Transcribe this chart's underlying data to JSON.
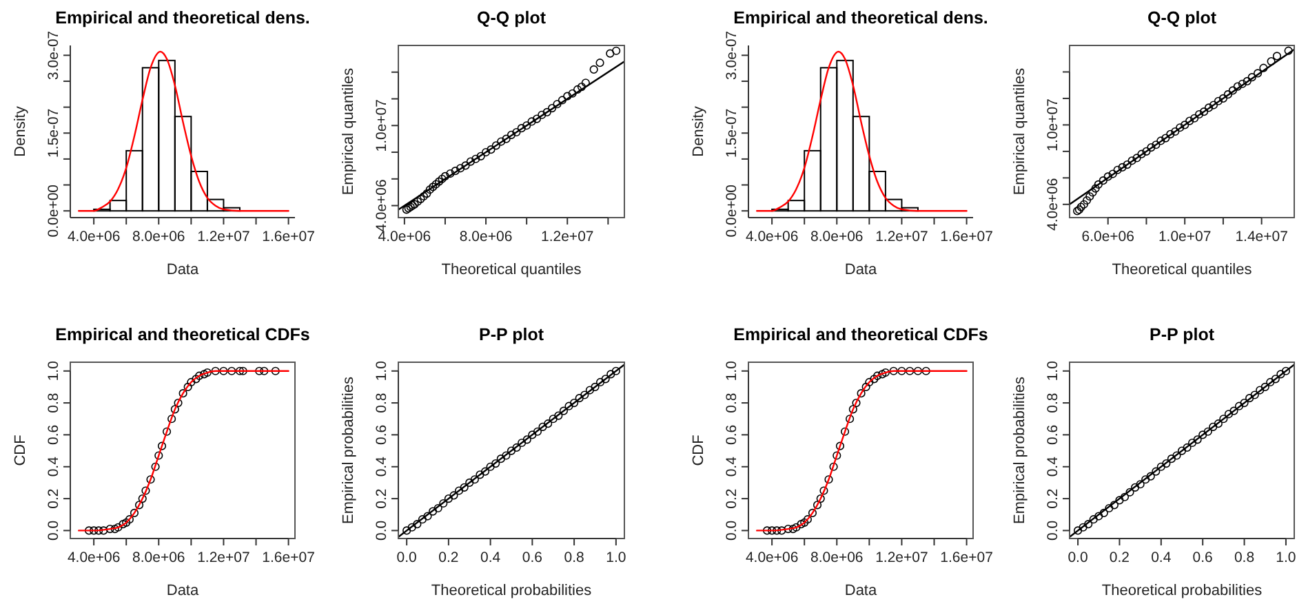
{
  "chart_data": [
    {
      "type": "histogram",
      "title": "Empirical and theoretical dens.",
      "xlabel": "Data",
      "ylabel": "Density",
      "bins": [
        4000000.0,
        5000000.0,
        6000000.0,
        7000000.0,
        8000000.0,
        9000000.0,
        10000000.0,
        11000000.0,
        12000000.0,
        13000000.0
      ],
      "values": [
        3e-09,
        2e-08,
        1.16e-07,
        2.76e-07,
        2.9e-07,
        1.82e-07,
        7.6e-08,
        2.2e-08,
        6e-09
      ],
      "xlim": [
        2550000.0,
        16400000.0
      ],
      "ylim": [
        -1.3e-08,
        3.19e-07
      ],
      "xticks": [
        {
          "value": 4000000.0,
          "label": "4.0e+06"
        },
        {
          "value": 6000000.0,
          "label": null
        },
        {
          "value": 8000000.0,
          "label": "8.0e+06"
        },
        {
          "value": 10000000.0,
          "label": null
        },
        {
          "value": 12000000.0,
          "label": "1.2e+07"
        },
        {
          "value": 14000000.0,
          "label": null
        },
        {
          "value": 16000000.0,
          "label": "1.6e+07"
        }
      ],
      "yticks": [
        {
          "value": 0,
          "label": "0.0e+00"
        },
        {
          "value": 5e-08,
          "label": null
        },
        {
          "value": 1e-07,
          "label": null
        },
        {
          "value": 1.5e-07,
          "label": "1.5e-07"
        },
        {
          "value": 2e-07,
          "label": null
        },
        {
          "value": 2.5e-07,
          "label": null
        },
        {
          "value": 3e-07,
          "label": "3.0e-07"
        }
      ],
      "series": [
        {
          "type": "line",
          "color": "#ff0000",
          "x": [
            3070000.0,
            4000000.0,
            4500000.0,
            5000000.0,
            5500000.0,
            6000000.0,
            6500000.0,
            7000000.0,
            7500000.0,
            8100000.0,
            8500000.0,
            9000000.0,
            9500000.0,
            10000000.0,
            10500000.0,
            11000000.0,
            11500000.0,
            12000000.0,
            13000000.0,
            16000000.0
          ],
          "values": [
            0,
            0,
            7e-09,
            1.8e-08,
            4.2e-08,
            8.3e-08,
            1.44e-07,
            2.14e-07,
            2.76e-07,
            3.07e-07,
            2.93e-07,
            2.42e-07,
            1.71e-07,
            1.06e-07,
            5.6e-08,
            2.5e-08,
            1e-08,
            3e-09,
            0,
            0
          ]
        }
      ]
    },
    {
      "type": "scatter",
      "title": "Q-Q plot",
      "xlabel": "Theoretical quantiles",
      "ylabel": "Empirical quantiles",
      "xlim": [
        3700000.0,
        14800000.0
      ],
      "ylim": [
        3100000.0,
        16000000.0
      ],
      "xticks": [
        {
          "value": 4000000.0,
          "label": "4.0e+06"
        },
        {
          "value": 6000000.0,
          "label": null
        },
        {
          "value": 8000000.0,
          "label": "8.0e+06"
        },
        {
          "value": 10000000.0,
          "label": null
        },
        {
          "value": 12000000.0,
          "label": "1.2e+07"
        },
        {
          "value": 14000000.0,
          "label": null
        }
      ],
      "yticks": [
        {
          "value": 4000000.0,
          "label": "4.0e+06"
        },
        {
          "value": 6000000.0,
          "label": null
        },
        {
          "value": 8000000.0,
          "label": null
        },
        {
          "value": 10000000.0,
          "label": "1.0e+07"
        },
        {
          "value": 12000000.0,
          "label": null
        },
        {
          "value": 14000000.0,
          "label": null
        }
      ],
      "series": [
        {
          "type": "scatter",
          "marker": "circle",
          "color": "#000000",
          "x": [
            4100000.0,
            4200000.0,
            4300000.0,
            4400000.0,
            4500000.0,
            4650000.0,
            4800000.0,
            4950000.0,
            5100000.0,
            5250000.0,
            5400000.0,
            5550000.0,
            5700000.0,
            5850000.0,
            6000000.0,
            6250000.0,
            6500000.0,
            6750000.0,
            7000000.0,
            7250000.0,
            7500000.0,
            7750000.0,
            8000000.0,
            8250000.0,
            8500000.0,
            8750000.0,
            9000000.0,
            9250000.0,
            9500000.0,
            9750000.0,
            10000000.0,
            10250000.0,
            10500000.0,
            10750000.0,
            11000000.0,
            11250000.0,
            11500000.0,
            11750000.0,
            12000000.0,
            12250000.0,
            12500000.0,
            12700000.0,
            12900000.0,
            13300000.0,
            13600000.0,
            14100000.0,
            14400000.0
          ],
          "values": [
            3700000.0,
            3800000.0,
            3900000.0,
            4000000.0,
            4100000.0,
            4300000.0,
            4500000.0,
            4700000.0,
            4900000.0,
            5200000.0,
            5400000.0,
            5600000.0,
            5800000.0,
            6000000.0,
            6200000.0,
            6400000.0,
            6600000.0,
            6800000.0,
            7000000.0,
            7300000.0,
            7500000.0,
            7700000.0,
            8000000.0,
            8200000.0,
            8500000.0,
            8800000.0,
            9000000.0,
            9300000.0,
            9500000.0,
            9800000.0,
            10000000.0,
            10300000.0,
            10500000.0,
            10800000.0,
            11000000.0,
            11300000.0,
            11600000.0,
            11900000.0,
            12200000.0,
            12400000.0,
            12700000.0,
            12900000.0,
            13200000.0,
            14200000.0,
            14700000.0,
            15400000.0,
            15600000.0
          ]
        },
        {
          "type": "line",
          "marker": "none",
          "color": "#000000",
          "x": [
            3700000.0,
            14800000.0
          ],
          "values": [
            3700000.0,
            14800000.0
          ]
        }
      ]
    },
    {
      "type": "histogram",
      "title": "Empirical and theoretical dens.",
      "xlabel": "Data",
      "ylabel": "Density",
      "bins": [
        4000000.0,
        5000000.0,
        6000000.0,
        7000000.0,
        8000000.0,
        9000000.0,
        10000000.0,
        11000000.0,
        12000000.0,
        13000000.0
      ],
      "values": [
        3e-09,
        2e-08,
        1.16e-07,
        2.76e-07,
        2.9e-07,
        1.82e-07,
        7.6e-08,
        2.2e-08,
        6e-09
      ],
      "xlim": [
        2550000.0,
        16400000.0
      ],
      "ylim": [
        -1.3e-08,
        3.19e-07
      ],
      "xticks": [
        {
          "value": 4000000.0,
          "label": "4.0e+06"
        },
        {
          "value": 6000000.0,
          "label": null
        },
        {
          "value": 8000000.0,
          "label": "8.0e+06"
        },
        {
          "value": 10000000.0,
          "label": null
        },
        {
          "value": 12000000.0,
          "label": "1.2e+07"
        },
        {
          "value": 14000000.0,
          "label": null
        },
        {
          "value": 16000000.0,
          "label": "1.6e+07"
        }
      ],
      "yticks": [
        {
          "value": 0,
          "label": "0.0e+00"
        },
        {
          "value": 5e-08,
          "label": null
        },
        {
          "value": 1e-07,
          "label": null
        },
        {
          "value": 1.5e-07,
          "label": "1.5e-07"
        },
        {
          "value": 2e-07,
          "label": null
        },
        {
          "value": 2.5e-07,
          "label": null
        },
        {
          "value": 3e-07,
          "label": "3.0e-07"
        }
      ],
      "series": [
        {
          "type": "line",
          "color": "#ff0000",
          "x": [
            3070000.0,
            4000000.0,
            4500000.0,
            5000000.0,
            5500000.0,
            6000000.0,
            6500000.0,
            7000000.0,
            7500000.0,
            8100000.0,
            8500000.0,
            9000000.0,
            9500000.0,
            10000000.0,
            10500000.0,
            11000000.0,
            11500000.0,
            12000000.0,
            13000000.0,
            16000000.0
          ],
          "values": [
            0,
            0,
            7e-09,
            1.8e-08,
            4.2e-08,
            8.3e-08,
            1.44e-07,
            2.14e-07,
            2.76e-07,
            3.07e-07,
            2.93e-07,
            2.42e-07,
            1.71e-07,
            1.06e-07,
            5.6e-08,
            2.5e-08,
            1e-08,
            3e-09,
            0,
            0
          ]
        }
      ]
    },
    {
      "type": "scatter",
      "title": "Q-Q plot",
      "xlabel": "Theoretical quantiles",
      "ylabel": "Empirical quantiles",
      "xlim": [
        4000000.0,
        15700000.0
      ],
      "ylim": [
        3000000.0,
        16000000.0
      ],
      "xticks": [
        {
          "value": 6000000.0,
          "label": "6.0e+06"
        },
        {
          "value": 8000000.0,
          "label": null
        },
        {
          "value": 10000000.0,
          "label": "1.0e+07"
        },
        {
          "value": 12000000.0,
          "label": null
        },
        {
          "value": 14000000.0,
          "label": "1.4e+07"
        }
      ],
      "yticks": [
        {
          "value": 4000000.0,
          "label": "4.0e+06"
        },
        {
          "value": 6000000.0,
          "label": null
        },
        {
          "value": 8000000.0,
          "label": null
        },
        {
          "value": 10000000.0,
          "label": "1.0e+07"
        },
        {
          "value": 12000000.0,
          "label": null
        },
        {
          "value": 14000000.0,
          "label": null
        }
      ],
      "series": [
        {
          "type": "scatter",
          "marker": "circle",
          "color": "#000000",
          "x": [
            4400000.0,
            4500000.0,
            4600000.0,
            4750000.0,
            4900000.0,
            5050000.0,
            5200000.0,
            5350000.0,
            5500000.0,
            5750000.0,
            6000000.0,
            6250000.0,
            6500000.0,
            6750000.0,
            7000000.0,
            7250000.0,
            7500000.0,
            7750000.0,
            8000000.0,
            8250000.0,
            8500000.0,
            8750000.0,
            9000000.0,
            9250000.0,
            9500000.0,
            9750000.0,
            10000000.0,
            10250000.0,
            10500000.0,
            10750000.0,
            11000000.0,
            11250000.0,
            11500000.0,
            11750000.0,
            12000000.0,
            12250000.0,
            12500000.0,
            12750000.0,
            13000000.0,
            13250000.0,
            13500000.0,
            13800000.0,
            14100000.0,
            14500000.0,
            14800000.0,
            15400000.0
          ],
          "values": [
            3500000.0,
            3600000.0,
            3800000.0,
            4000000.0,
            4300000.0,
            4600000.0,
            4900000.0,
            5200000.0,
            5500000.0,
            5800000.0,
            6100000.0,
            6300000.0,
            6600000.0,
            6800000.0,
            7000000.0,
            7300000.0,
            7500000.0,
            7800000.0,
            8000000.0,
            8300000.0,
            8500000.0,
            8800000.0,
            9000000.0,
            9300000.0,
            9500000.0,
            9800000.0,
            10000000.0,
            10300000.0,
            10500000.0,
            10800000.0,
            11000000.0,
            11300000.0,
            11500000.0,
            11800000.0,
            12000000.0,
            12300000.0,
            12600000.0,
            12900000.0,
            13100000.0,
            13300000.0,
            13600000.0,
            13900000.0,
            14300000.0,
            14800000.0,
            15200000.0,
            15600000.0
          ]
        },
        {
          "type": "line",
          "marker": "none",
          "color": "#000000",
          "x": [
            4000000.0,
            15700000.0
          ],
          "values": [
            4000000.0,
            15700000.0
          ]
        }
      ]
    },
    {
      "type": "scatter",
      "title": "Empirical and theoretical CDFs",
      "xlabel": "Data",
      "ylabel": "CDF",
      "xlim": [
        2550000.0,
        16400000.0
      ],
      "ylim": [
        -0.05,
        1.055
      ],
      "xticks": [
        {
          "value": 4000000.0,
          "label": "4.0e+06"
        },
        {
          "value": 6000000.0,
          "label": null
        },
        {
          "value": 8000000.0,
          "label": "8.0e+06"
        },
        {
          "value": 10000000.0,
          "label": null
        },
        {
          "value": 12000000.0,
          "label": "1.2e+07"
        },
        {
          "value": 14000000.0,
          "label": null
        },
        {
          "value": 16000000.0,
          "label": "1.6e+07"
        }
      ],
      "yticks": [
        {
          "value": 0,
          "label": "0.0"
        },
        0.2,
        0.4,
        0.6,
        0.8,
        {
          "value": 1,
          "label": "1.0"
        }
      ],
      "series": [
        {
          "type": "scatter",
          "marker": "circle",
          "color": "#000000",
          "x": [
            3700000.0,
            4000000.0,
            4300000.0,
            4600000.0,
            5000000.0,
            5300000.0,
            5500000.0,
            5800000.0,
            6000000.0,
            6200000.0,
            6500000.0,
            6800000.0,
            7000000.0,
            7200000.0,
            7500000.0,
            7800000.0,
            8000000.0,
            8200000.0,
            8500000.0,
            8800000.0,
            9000000.0,
            9200000.0,
            9500000.0,
            9800000.0,
            10000000.0,
            10300000.0,
            10500000.0,
            10800000.0,
            11000000.0,
            11500000.0,
            12000000.0,
            12500000.0,
            13000000.0,
            13200000.0,
            14200000.0,
            14500000.0,
            15200000.0
          ],
          "values": [
            0,
            0,
            0,
            0,
            0.01,
            0.01,
            0.02,
            0.04,
            0.05,
            0.07,
            0.11,
            0.16,
            0.2,
            0.25,
            0.32,
            0.4,
            0.47,
            0.53,
            0.62,
            0.7,
            0.76,
            0.8,
            0.86,
            0.9,
            0.93,
            0.95,
            0.97,
            0.98,
            0.99,
            1,
            1,
            1,
            1,
            1,
            1,
            1,
            1
          ]
        },
        {
          "type": "line",
          "marker": "none",
          "color": "#ff0000",
          "x": [
            3070000.0,
            4000000.0,
            5000000.0,
            5500000.0,
            6000000.0,
            6500000.0,
            7000000.0,
            7500000.0,
            8000000.0,
            8500000.0,
            9000000.0,
            9500000.0,
            10000000.0,
            10500000.0,
            11000000.0,
            11500000.0,
            12000000.0,
            13000000.0,
            16000000.0
          ],
          "values": [
            0,
            0,
            0.01,
            0.02,
            0.05,
            0.11,
            0.2,
            0.32,
            0.47,
            0.62,
            0.76,
            0.86,
            0.93,
            0.97,
            0.99,
            1,
            1,
            1,
            1
          ]
        }
      ]
    },
    {
      "type": "scatter",
      "title": "P-P plot",
      "xlabel": "Theoretical probabilities",
      "ylabel": "Empirical probabilities",
      "xlim": [
        -0.04,
        1.04
      ],
      "ylim": [
        -0.05,
        1.055
      ],
      "xticks": [
        {
          "value": 0,
          "label": "0.0"
        },
        0.2,
        0.4,
        0.6,
        0.8,
        {
          "value": 1,
          "label": "1.0"
        }
      ],
      "yticks": [
        {
          "value": 0,
          "label": "0.0"
        },
        0.2,
        0.4,
        0.6,
        0.8,
        {
          "value": 1,
          "label": "1.0"
        }
      ],
      "series": [
        {
          "type": "scatter",
          "marker": "circle",
          "color": "#000000",
          "x": [
            0,
            0.025,
            0.05,
            0.075,
            0.1,
            0.125,
            0.15,
            0.175,
            0.2,
            0.225,
            0.25,
            0.275,
            0.3,
            0.325,
            0.35,
            0.375,
            0.4,
            0.425,
            0.45,
            0.475,
            0.5,
            0.525,
            0.55,
            0.575,
            0.6,
            0.625,
            0.65,
            0.675,
            0.7,
            0.725,
            0.75,
            0.775,
            0.8,
            0.825,
            0.85,
            0.875,
            0.9,
            0.925,
            0.95,
            0.975,
            1
          ],
          "values": [
            0,
            0.02,
            0.04,
            0.07,
            0.09,
            0.12,
            0.14,
            0.17,
            0.2,
            0.22,
            0.25,
            0.27,
            0.3,
            0.32,
            0.35,
            0.37,
            0.4,
            0.42,
            0.45,
            0.47,
            0.5,
            0.52,
            0.55,
            0.57,
            0.6,
            0.62,
            0.65,
            0.67,
            0.7,
            0.72,
            0.75,
            0.78,
            0.8,
            0.83,
            0.85,
            0.88,
            0.9,
            0.93,
            0.95,
            0.98,
            1
          ]
        },
        {
          "type": "line",
          "marker": "none",
          "color": "#000000",
          "x": [
            -0.04,
            1.04
          ],
          "values": [
            -0.04,
            1.04
          ]
        }
      ]
    },
    {
      "type": "scatter",
      "title": "Empirical and theoretical CDFs",
      "xlabel": "Data",
      "ylabel": "CDF",
      "xlim": [
        2550000.0,
        16400000.0
      ],
      "ylim": [
        -0.05,
        1.055
      ],
      "xticks": [
        {
          "value": 4000000.0,
          "label": "4.0e+06"
        },
        {
          "value": 6000000.0,
          "label": null
        },
        {
          "value": 8000000.0,
          "label": "8.0e+06"
        },
        {
          "value": 10000000.0,
          "label": null
        },
        {
          "value": 12000000.0,
          "label": "1.2e+07"
        },
        {
          "value": 14000000.0,
          "label": null
        },
        {
          "value": 16000000.0,
          "label": "1.6e+07"
        }
      ],
      "yticks": [
        {
          "value": 0,
          "label": "0.0"
        },
        0.2,
        0.4,
        0.6,
        0.8,
        {
          "value": 1,
          "label": "1.0"
        }
      ],
      "series": [
        {
          "type": "scatter",
          "marker": "circle",
          "color": "#000000",
          "x": [
            3700000.0,
            4000000.0,
            4300000.0,
            4600000.0,
            5000000.0,
            5300000.0,
            5500000.0,
            5800000.0,
            6000000.0,
            6200000.0,
            6500000.0,
            6800000.0,
            7000000.0,
            7200000.0,
            7500000.0,
            7800000.0,
            8000000.0,
            8200000.0,
            8500000.0,
            8800000.0,
            9000000.0,
            9200000.0,
            9500000.0,
            9800000.0,
            10000000.0,
            10300000.0,
            10500000.0,
            10800000.0,
            11000000.0,
            11500000.0,
            12000000.0,
            12500000.0,
            13000000.0,
            13500000.0
          ],
          "values": [
            0,
            0,
            0,
            0,
            0.01,
            0.01,
            0.02,
            0.04,
            0.05,
            0.07,
            0.11,
            0.16,
            0.2,
            0.25,
            0.32,
            0.4,
            0.47,
            0.53,
            0.62,
            0.7,
            0.76,
            0.8,
            0.86,
            0.9,
            0.93,
            0.95,
            0.97,
            0.98,
            0.99,
            1,
            1,
            1,
            1,
            1
          ]
        },
        {
          "type": "line",
          "marker": "none",
          "color": "#ff0000",
          "x": [
            3070000.0,
            4000000.0,
            5000000.0,
            5500000.0,
            6000000.0,
            6500000.0,
            7000000.0,
            7500000.0,
            8000000.0,
            8500000.0,
            9000000.0,
            9500000.0,
            10000000.0,
            10500000.0,
            11000000.0,
            11500000.0,
            12000000.0,
            13000000.0,
            16000000.0
          ],
          "values": [
            0,
            0,
            0.01,
            0.02,
            0.05,
            0.11,
            0.2,
            0.32,
            0.47,
            0.62,
            0.76,
            0.86,
            0.93,
            0.97,
            0.99,
            1,
            1,
            1,
            1
          ]
        }
      ]
    },
    {
      "type": "scatter",
      "title": "P-P plot",
      "xlabel": "Theoretical probabilities",
      "ylabel": "Empirical probabilities",
      "xlim": [
        -0.04,
        1.04
      ],
      "ylim": [
        -0.05,
        1.055
      ],
      "xticks": [
        {
          "value": 0,
          "label": "0.0"
        },
        0.2,
        0.4,
        0.6,
        0.8,
        {
          "value": 1,
          "label": "1.0"
        }
      ],
      "yticks": [
        {
          "value": 0,
          "label": "0.0"
        },
        0.2,
        0.4,
        0.6,
        0.8,
        {
          "value": 1,
          "label": "1.0"
        }
      ],
      "series": [
        {
          "type": "scatter",
          "marker": "circle",
          "color": "#000000",
          "x": [
            0,
            0.025,
            0.05,
            0.075,
            0.1,
            0.125,
            0.15,
            0.175,
            0.2,
            0.225,
            0.25,
            0.275,
            0.3,
            0.325,
            0.35,
            0.375,
            0.4,
            0.425,
            0.45,
            0.475,
            0.5,
            0.525,
            0.55,
            0.575,
            0.6,
            0.625,
            0.65,
            0.675,
            0.7,
            0.725,
            0.75,
            0.775,
            0.8,
            0.825,
            0.85,
            0.875,
            0.9,
            0.925,
            0.95,
            0.975,
            1
          ],
          "values": [
            0,
            0.02,
            0.04,
            0.07,
            0.09,
            0.11,
            0.14,
            0.16,
            0.19,
            0.21,
            0.24,
            0.27,
            0.29,
            0.32,
            0.34,
            0.37,
            0.4,
            0.42,
            0.45,
            0.47,
            0.5,
            0.52,
            0.55,
            0.57,
            0.6,
            0.62,
            0.65,
            0.67,
            0.7,
            0.73,
            0.75,
            0.78,
            0.8,
            0.83,
            0.85,
            0.88,
            0.9,
            0.93,
            0.95,
            0.98,
            1
          ]
        },
        {
          "type": "line",
          "marker": "none",
          "color": "#000000",
          "x": [
            -0.04,
            1.04
          ],
          "values": [
            -0.04,
            1.04
          ]
        }
      ]
    }
  ]
}
